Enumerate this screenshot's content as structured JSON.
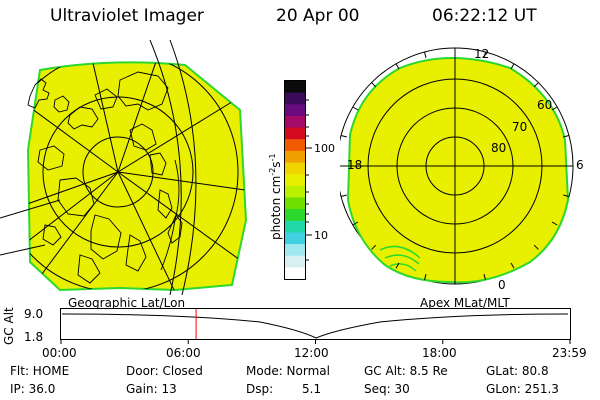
{
  "header": {
    "instrument": "Ultraviolet Imager",
    "date": "20 Apr 00",
    "time": "06:22:12 UT"
  },
  "colorbar": {
    "ticks": [
      "100",
      "10"
    ],
    "unit_label": "photon cm",
    "unit_exp1": "-2",
    "unit_mid": "s",
    "unit_exp2": "-1",
    "colors": [
      "#0a0a0a",
      "#3b0a5a",
      "#6a0a80",
      "#a30a6a",
      "#d40a20",
      "#f05a00",
      "#f0a000",
      "#f0d400",
      "#e8f000",
      "#b8f000",
      "#6ee000",
      "#2cd82c",
      "#20d8a8",
      "#40d0e0",
      "#a0e8f0",
      "#d8f0f4",
      "#ffffff"
    ]
  },
  "left_view": {
    "label": "Geographic Lat/Lon"
  },
  "right_view": {
    "label": "Apex MLat/MLT",
    "mlt_labels": {
      "top": "12",
      "left": "18",
      "right": "6",
      "bottom": "0"
    },
    "lat_labels": [
      "60",
      "70",
      "80"
    ]
  },
  "timeline": {
    "axis_label": "GC Alt",
    "y_ticks": [
      "9.0",
      "1.8"
    ],
    "x_ticks": [
      "00:00",
      "06:00",
      "12:00",
      "18:00",
      "23:59"
    ],
    "current_time_fraction": 0.2654
  },
  "status": {
    "flt": "Flt: HOME",
    "ip": "IP: 36.0",
    "door": "Door: Closed",
    "gain": "Gain: 13",
    "mode": "Mode: Normal",
    "dsp_label": "Dsp:",
    "dsp_value": "5.1",
    "gc_alt": "GC Alt: 8.5 Re",
    "seq": "Seq: 30",
    "glat": "GLat: 80.8",
    "glon": "GLon: 251.3"
  },
  "colors": {
    "auroral_fill": "#e8f000",
    "auroral_edge": "#2cd82c",
    "marker": "#ff0000"
  }
}
